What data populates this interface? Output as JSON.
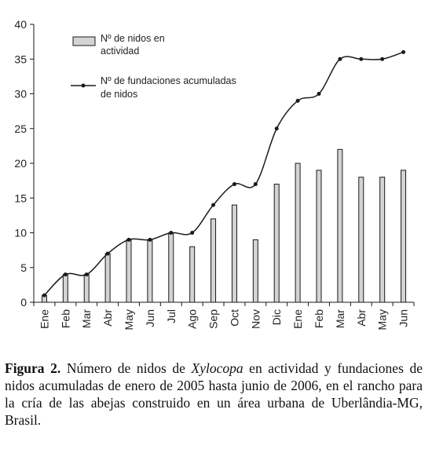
{
  "chart_data": {
    "type": "bar+line",
    "categories": [
      "Ene",
      "Feb",
      "Mar",
      "Abr",
      "May",
      "Jun",
      "Jul",
      "Ago",
      "Sep",
      "Oct",
      "Nov",
      "Dic",
      "Ene",
      "Feb",
      "Mar",
      "Abr",
      "May",
      "Jun"
    ],
    "series": [
      {
        "name": "Nº de nidos en actividad",
        "type": "bar",
        "values": [
          1,
          4,
          4,
          7,
          9,
          9,
          10,
          8,
          12,
          14,
          9,
          17,
          20,
          19,
          22,
          18,
          18,
          19
        ]
      },
      {
        "name": "Nº de fundaciones acumuladas de nidos",
        "type": "line",
        "values": [
          1,
          4,
          4,
          7,
          9,
          9,
          10,
          10,
          14,
          17,
          17,
          25,
          29,
          30,
          35,
          35,
          35,
          36
        ]
      }
    ],
    "ylim": [
      0,
      40
    ],
    "yticks": [
      0,
      5,
      10,
      15,
      20,
      25,
      30,
      35,
      40
    ],
    "grid": false,
    "legend_position": "top-left",
    "legend": {
      "bar_line1": "Nº de nidos en",
      "bar_line2": "actividad",
      "line_line1": "Nº de fundaciones acumuladas",
      "line_line2": "de nidos"
    },
    "colors": {
      "bar_fill": "#d4d4d4",
      "stroke": "#1a1a1a"
    }
  },
  "caption": {
    "label": "Figura 2.",
    "text_before": " Número de nidos de ",
    "italic": "Xylocopa",
    "text_after": " en actividad y fundaciones de nidos acumuladas de enero de 2005 hasta junio de 2006, en el rancho para la cría de las abejas construido en un área urbana de Uberlândia-MG, Brasil."
  }
}
